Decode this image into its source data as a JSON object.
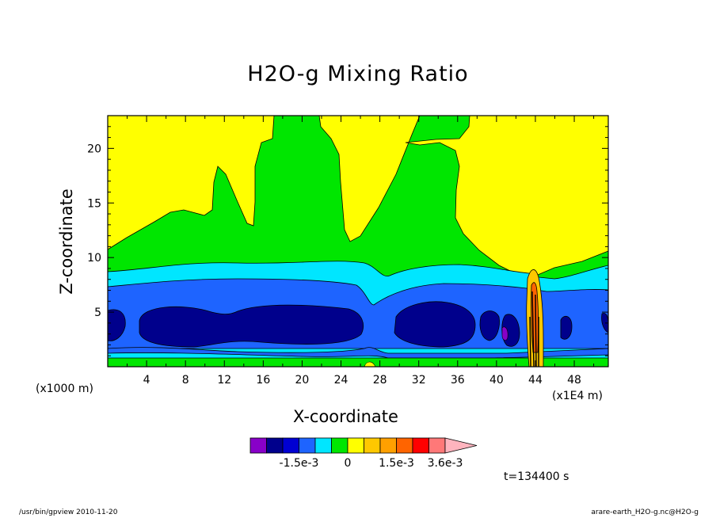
{
  "chart_data": {
    "type": "contour",
    "title": "H2O-g Mixing Ratio",
    "xlabel": "X-coordinate",
    "ylabel": "Z-coordinate",
    "x_unit_left": "(x1000 m)",
    "x_unit_right": "(x1E4 m)",
    "xlim": [
      0,
      51.5
    ],
    "ylim": [
      0,
      23
    ],
    "x_ticks": [
      4,
      8,
      12,
      16,
      20,
      24,
      28,
      32,
      36,
      40,
      44,
      48
    ],
    "y_ticks": [
      5,
      10,
      15,
      20
    ],
    "colorbar": {
      "colors": [
        "#8800c8",
        "#00008c",
        "#0000d2",
        "#1e64ff",
        "#00e6ff",
        "#00e600",
        "#ffff00",
        "#ffc800",
        "#ffa000",
        "#ff6400",
        "#ff0000",
        "#ff7878",
        "#ffb4be"
      ],
      "tick_labels": [
        "-1.5e-3",
        "0",
        "1.5e-3",
        "3.6e-3"
      ],
      "extend": "max"
    },
    "layers": [
      {
        "level": "low band 1",
        "color": "#00e600"
      },
      {
        "level": "low band 2",
        "color": "#00e6ff"
      },
      {
        "level": "low band 3",
        "color": "#1e64ff"
      },
      {
        "level": "core",
        "color": "#00008c"
      }
    ],
    "time_label": "t=134400 s"
  },
  "footer": {
    "left": "/usr/bin/gpview   2010-11-20",
    "right": "arare-earth_H2O-g.nc@H2O-g"
  }
}
